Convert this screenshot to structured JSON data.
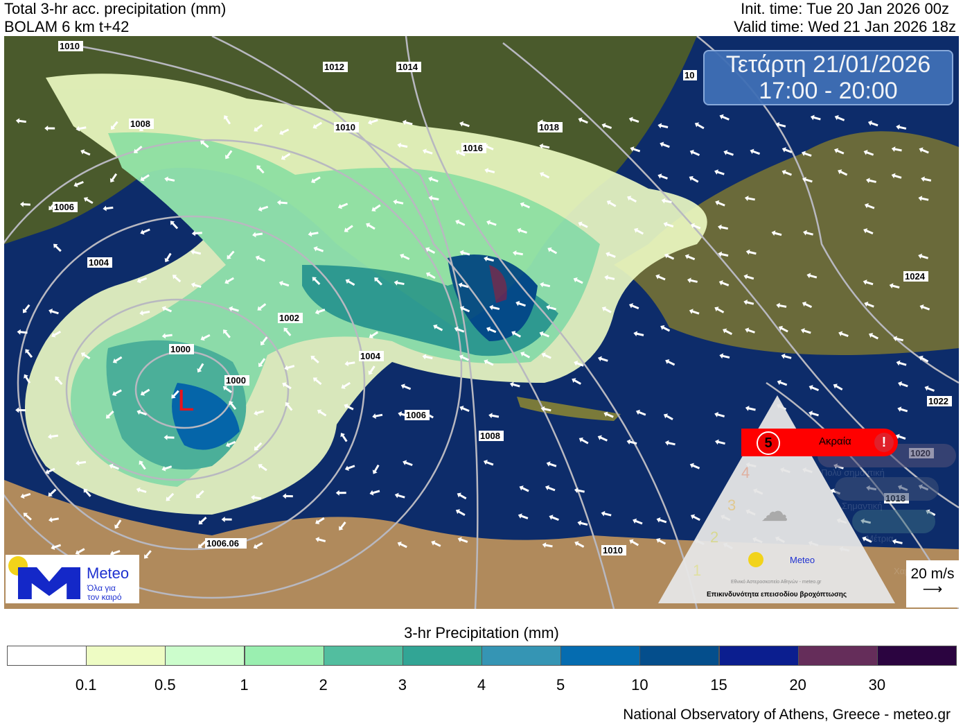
{
  "header": {
    "title": "Total 3-hr acc. precipitation (mm)",
    "model": "BOLAM 6 km t+42",
    "init_time": "Init. time: Tue 20 Jan 2026 00z",
    "valid_time": "Valid time: Wed 21 Jan 2026 18z"
  },
  "date_box": {
    "day": "Τετάρτη 21/01/2026",
    "hours": "17:00 - 20:00"
  },
  "map": {
    "low_label": "L",
    "low_color": "#e8141c",
    "sea_color": "#0d2c6a",
    "isobar_labels": [
      "1010",
      "1012",
      "1014",
      "1016",
      "1018",
      "1008",
      "1010",
      "1006",
      "1004",
      "1002",
      "1000",
      "1000",
      "1004",
      "1006",
      "1008",
      "1010",
      "1006.06",
      "1024",
      "1022",
      "1020",
      "1018",
      "10"
    ]
  },
  "logo": {
    "name": "Meteo",
    "tagline1": "Όλα για",
    "tagline2": "τον καιρό"
  },
  "warning": {
    "title": "Επικινδυνότητα επεισοδίου βροχόπτωσης",
    "org": "Εθνικό Αστεροσκοπείο Αθηνών - meteo.gr",
    "active_level": 5,
    "levels": [
      {
        "n": "5",
        "label": "Ακραία",
        "color": "#ff0000"
      },
      {
        "n": "4",
        "label": "Πολύ σημαντική"
      },
      {
        "n": "3",
        "label": "Σημαντική"
      },
      {
        "n": "2",
        "label": "Μέτρια"
      },
      {
        "n": "1",
        "label": "Χαμηλή"
      }
    ]
  },
  "wind_legend": {
    "label": "20 m/s"
  },
  "colorbar": {
    "title": "3-hr Precipitation (mm)",
    "colors": [
      "#ffffff",
      "#eefcc4",
      "#ccfdcc",
      "#9aefb0",
      "#52be9f",
      "#32a595",
      "#3595b4",
      "#056cb0",
      "#044e8c",
      "#0b1e8f",
      "#652d5a",
      "#2b0440"
    ],
    "ticks": [
      "0.1",
      "0.5",
      "1",
      "2",
      "3",
      "4",
      "5",
      "10",
      "15",
      "20",
      "30"
    ]
  },
  "footer": {
    "credit": "National Observatory of Athens, Greece - meteo.gr"
  }
}
